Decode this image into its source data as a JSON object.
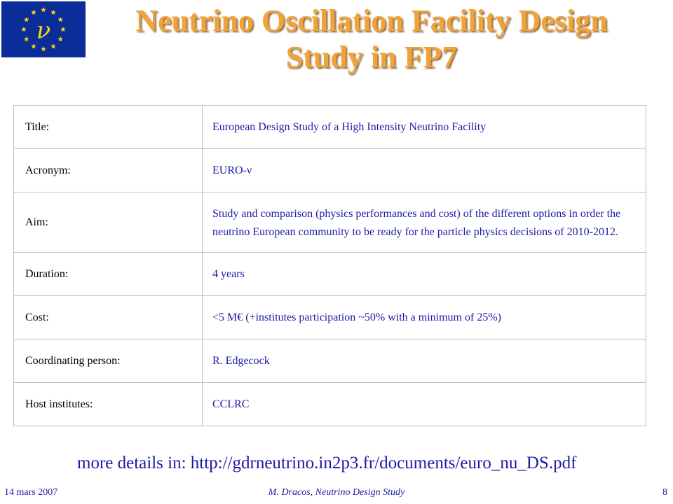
{
  "header": {
    "logo_icon": "eu-flag-nu-logo",
    "logo_symbol": "ν",
    "title_line1": "Neutrino Oscillation Facility Design",
    "title_line2": "Study in FP7"
  },
  "table": {
    "rows": [
      {
        "label": "Title:",
        "value": "European Design Study of a High Intensity Neutrino Facility"
      },
      {
        "label": "Acronym:",
        "value": "EURO-ν"
      },
      {
        "label": "Aim:",
        "value": "Study and comparison (physics performances and cost) of the different options in order the neutrino European community to be ready for the particle physics decisions of 2010-2012."
      },
      {
        "label": "Duration:",
        "value": "4 years"
      },
      {
        "label": "Cost:",
        "value": "<5 M€ (+institutes participation ~50% with a minimum of 25%)"
      },
      {
        "label": "Coordinating person:",
        "value": "R. Edgecock"
      },
      {
        "label": "Host institutes:",
        "value": "CCLRC"
      }
    ]
  },
  "more_details": "more details in: http://gdrneutrino.in2p3.fr/documents/euro_nu_DS.pdf",
  "footer": {
    "date": "14 mars 2007",
    "author": "M. Dracos, Neutrino Design Study",
    "page": "8"
  },
  "colors": {
    "title": "#f2a23a",
    "text_blue": "#1a1aa6",
    "logo_bg": "#0b2d99",
    "logo_stars": "#f7d417"
  }
}
